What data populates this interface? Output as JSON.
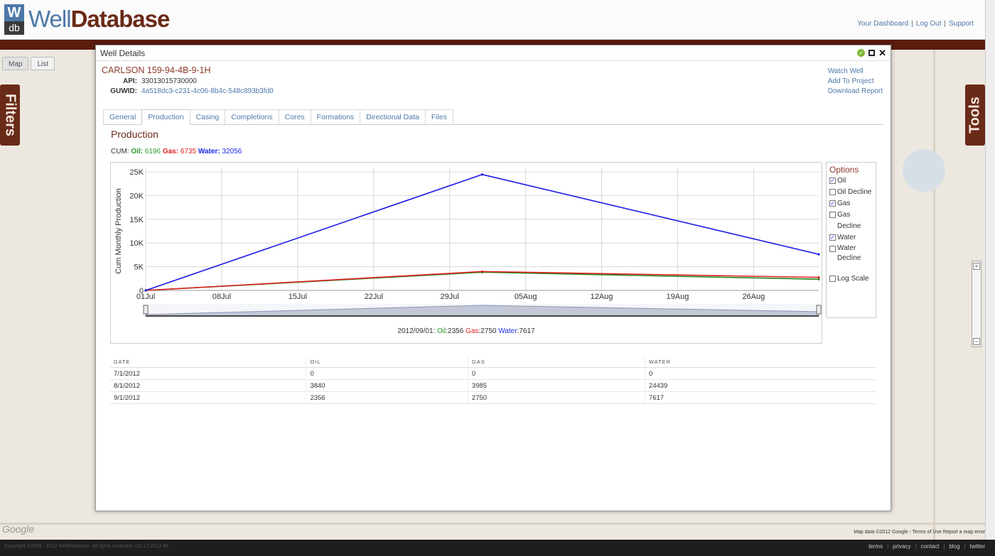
{
  "app": {
    "logo_w": "W",
    "logo_db": "db",
    "logo_text_a": "Well",
    "logo_text_b": "Database",
    "links": [
      "Your Dashboard",
      "Log Out",
      "Support"
    ],
    "view_tabs": [
      "Map",
      "List"
    ],
    "filters_label": "Filters",
    "tools_label": "Tools",
    "map_brand": "Google",
    "map_credit": "Map data ©2012 Google - Terms of Use  Report a map error",
    "footer_copy": "Copyright ©2009 - 2012 WellDatabase. All rights reserved. v11.17.2012.46",
    "footer_links": [
      "terms",
      "privacy",
      "contact",
      "blog",
      "twitter"
    ]
  },
  "dialog": {
    "title": "Well Details",
    "well_name": "CARLSON 159-94-4B-9-1H",
    "api_label": "API:",
    "api_value": "33013015730000",
    "guwid_label": "GUWID:",
    "guwid_value": "4a518dc3-c231-4c06-8b4c-548c893b3fd0",
    "actions": [
      "Watch Well",
      "Add To Project",
      "Download Report"
    ],
    "tabs": [
      "General",
      "Production",
      "Casing",
      "Completions",
      "Cores",
      "Formations",
      "Directional Data",
      "Files"
    ],
    "active_tab": "Production"
  },
  "production": {
    "section_title": "Production",
    "cum_prefix": "CUM:",
    "cum_oil_label": "Oil:",
    "cum_oil": "6196",
    "cum_gas_label": "Gas:",
    "cum_gas": "6735",
    "cum_water_label": "Water:",
    "cum_water": "32056",
    "point_date": "2012/09/01:",
    "point_oil_label": "Oil",
    "point_oil": ":2356",
    "point_gas_label": "Gas",
    "point_gas": ":2750",
    "point_water_label": "Water",
    "point_water": ":7617",
    "options_title": "Options",
    "options": [
      {
        "label": "Oil",
        "checked": true
      },
      {
        "label": "Oil Decline",
        "checked": false
      },
      {
        "label": "Gas",
        "checked": true
      },
      {
        "label": "Gas Decline",
        "checked": false
      },
      {
        "label": "Water",
        "checked": true
      },
      {
        "label": "Water Decline",
        "checked": false
      },
      {
        "label": "Log Scale",
        "checked": false
      }
    ],
    "table": {
      "headers": [
        "DATE",
        "OIL",
        "GAS",
        "WATER"
      ],
      "rows": [
        [
          "7/1/2012",
          "0",
          "0",
          "0"
        ],
        [
          "8/1/2012",
          "3840",
          "3985",
          "24439"
        ],
        [
          "9/1/2012",
          "2356",
          "2750",
          "7617"
        ]
      ]
    }
  },
  "chart_data": {
    "type": "line",
    "ylabel": "Cum Monthly Production",
    "x_tick_labels": [
      "01Jul",
      "08Jul",
      "15Jul",
      "22Jul",
      "29Jul",
      "05Aug",
      "12Aug",
      "19Aug",
      "26Aug"
    ],
    "y_tick_labels": [
      "0",
      "5K",
      "10K",
      "15K",
      "20K",
      "25K"
    ],
    "ylim": [
      0,
      25000
    ],
    "xlim": [
      "2012-07-01",
      "2012-09-01"
    ],
    "x": [
      "2012-07-01",
      "2012-08-01",
      "2012-09-01"
    ],
    "series": [
      {
        "name": "Oil",
        "color": "#1f8a1f",
        "values": [
          0,
          3840,
          2356
        ]
      },
      {
        "name": "Gas",
        "color": "#e02020",
        "values": [
          0,
          3985,
          2750
        ]
      },
      {
        "name": "Water",
        "color": "#1a1ae8",
        "values": [
          0,
          24439,
          7617
        ]
      }
    ],
    "grid": true
  }
}
